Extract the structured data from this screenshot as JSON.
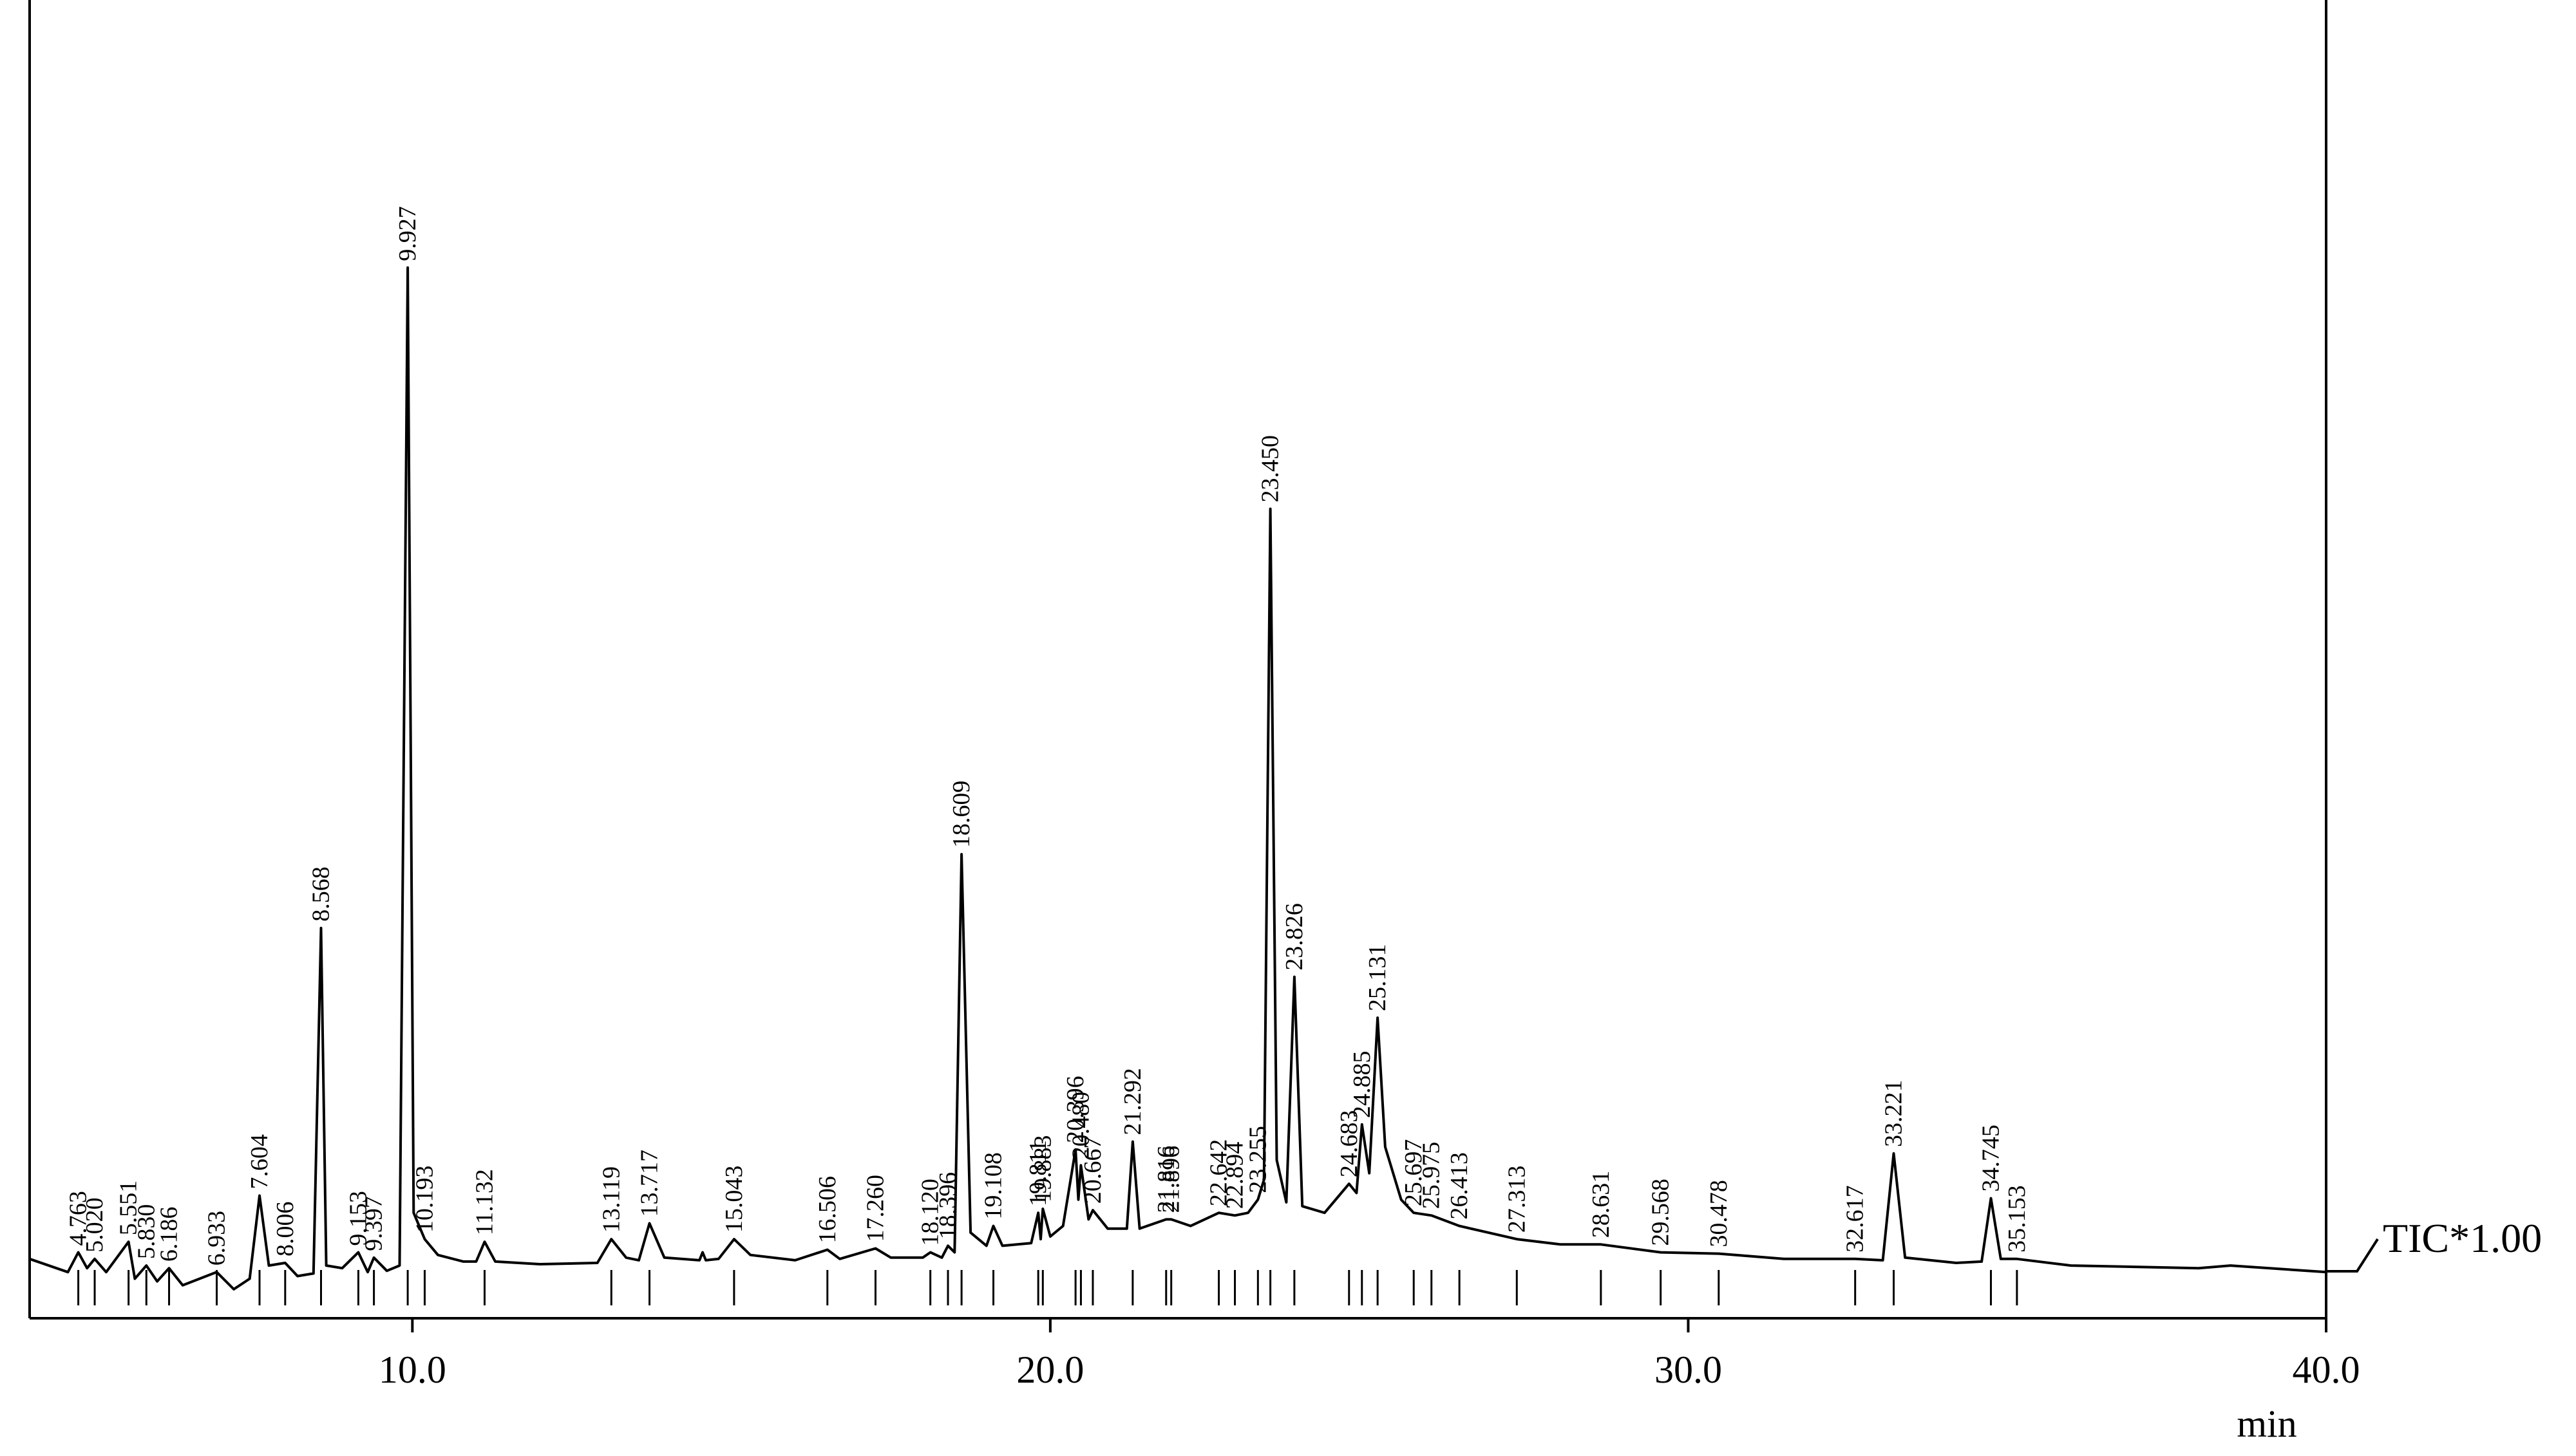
{
  "chart_data": {
    "type": "line",
    "xlabel": "min",
    "xlim": [
      4,
      40
    ],
    "xticks": [
      {
        "value": 10,
        "label": "10.0"
      },
      {
        "value": 20,
        "label": "20.0"
      },
      {
        "value": 30,
        "label": "30.0"
      },
      {
        "value": 40,
        "label": "40.0"
      }
    ],
    "ylim": [
      0,
      100
    ],
    "series": [
      {
        "name": "TIC*1.00",
        "color": "#000000",
        "x": [
          4.0,
          4.6,
          4.763,
          4.9,
          5.02,
          5.2,
          5.551,
          5.65,
          5.83,
          6.0,
          6.186,
          6.4,
          6.933,
          7.2,
          7.45,
          7.604,
          7.75,
          8.006,
          8.2,
          8.45,
          8.568,
          8.65,
          8.9,
          9.153,
          9.3,
          9.397,
          9.6,
          9.8,
          9.927,
          10.02,
          10.193,
          10.4,
          10.8,
          11.0,
          11.132,
          11.3,
          12.0,
          12.9,
          13.119,
          13.35,
          13.55,
          13.717,
          13.95,
          14.5,
          14.55,
          14.6,
          14.8,
          15.043,
          15.3,
          16.0,
          16.506,
          16.7,
          17.26,
          17.5,
          18.0,
          18.12,
          18.3,
          18.396,
          18.5,
          18.609,
          18.75,
          19.0,
          19.108,
          19.25,
          19.7,
          19.811,
          19.85,
          19.883,
          20.0,
          20.2,
          20.396,
          20.44,
          20.48,
          20.6,
          20.667,
          20.9,
          21.2,
          21.292,
          21.4,
          21.816,
          21.896,
          22.2,
          22.642,
          22.894,
          23.1,
          23.255,
          23.35,
          23.45,
          23.55,
          23.7,
          23.826,
          23.95,
          24.3,
          24.683,
          24.8,
          24.885,
          25.0,
          25.131,
          25.25,
          25.5,
          25.697,
          25.975,
          26.413,
          27.313,
          28.0,
          28.631,
          29.568,
          30.478,
          31.5,
          32.617,
          33.05,
          33.221,
          33.4,
          34.2,
          34.6,
          34.745,
          34.9,
          35.153,
          36.0,
          38.0,
          38.5,
          40.0
        ],
        "values": [
          4.5,
          3.5,
          5.0,
          3.8,
          4.5,
          3.5,
          5.8,
          3.0,
          4.0,
          2.8,
          3.8,
          2.5,
          3.5,
          2.2,
          3.0,
          9.3,
          4.0,
          4.2,
          3.2,
          3.4,
          29.6,
          4.0,
          3.8,
          5.0,
          3.5,
          4.6,
          3.6,
          4.0,
          79.7,
          8.0,
          6.0,
          4.8,
          4.3,
          4.3,
          5.8,
          4.3,
          4.1,
          4.2,
          6.0,
          4.6,
          4.4,
          7.2,
          4.6,
          4.4,
          5.0,
          4.4,
          4.5,
          6.0,
          4.8,
          4.4,
          5.2,
          4.5,
          5.3,
          4.6,
          4.6,
          5.0,
          4.6,
          5.5,
          5.0,
          35.2,
          6.5,
          5.5,
          7.0,
          5.5,
          5.7,
          8.0,
          6.0,
          8.3,
          6.2,
          7.0,
          12.8,
          9.0,
          11.6,
          7.5,
          8.2,
          6.8,
          6.8,
          13.4,
          6.8,
          7.5,
          7.5,
          7.0,
          8.0,
          7.8,
          8.0,
          9.0,
          10.5,
          61.4,
          12.0,
          8.8,
          25.9,
          8.5,
          8.0,
          10.2,
          9.5,
          14.7,
          11.0,
          22.8,
          13.0,
          9.0,
          8.0,
          7.8,
          7.0,
          6.0,
          5.6,
          5.6,
          5.0,
          4.9,
          4.5,
          4.5,
          4.4,
          12.5,
          4.6,
          4.2,
          4.3,
          9.1,
          4.5,
          4.5,
          4.0,
          3.8,
          4.0,
          3.5
        ]
      }
    ],
    "annotations": [
      {
        "x": 4.763,
        "label": "4.763"
      },
      {
        "x": 5.02,
        "label": "5.020"
      },
      {
        "x": 5.551,
        "label": "5.551"
      },
      {
        "x": 5.83,
        "label": "5.830"
      },
      {
        "x": 6.186,
        "label": "6.186"
      },
      {
        "x": 6.933,
        "label": "6.933"
      },
      {
        "x": 7.604,
        "label": "7.604"
      },
      {
        "x": 8.006,
        "label": "8.006"
      },
      {
        "x": 8.568,
        "label": "8.568"
      },
      {
        "x": 9.153,
        "label": "9.153"
      },
      {
        "x": 9.397,
        "label": "9.397"
      },
      {
        "x": 9.927,
        "label": "9.927"
      },
      {
        "x": 10.193,
        "label": "10.193"
      },
      {
        "x": 11.132,
        "label": "11.132"
      },
      {
        "x": 13.119,
        "label": "13.119"
      },
      {
        "x": 13.717,
        "label": "13.717"
      },
      {
        "x": 15.043,
        "label": "15.043"
      },
      {
        "x": 16.506,
        "label": "16.506"
      },
      {
        "x": 17.26,
        "label": "17.260"
      },
      {
        "x": 18.12,
        "label": "18.120"
      },
      {
        "x": 18.396,
        "label": "18.396"
      },
      {
        "x": 18.609,
        "label": "18.609"
      },
      {
        "x": 19.108,
        "label": "19.108"
      },
      {
        "x": 19.811,
        "label": "19.811"
      },
      {
        "x": 19.883,
        "label": "19.883"
      },
      {
        "x": 20.396,
        "label": "20.396"
      },
      {
        "x": 20.48,
        "label": "20.480"
      },
      {
        "x": 20.667,
        "label": "20.667"
      },
      {
        "x": 21.292,
        "label": "21.292"
      },
      {
        "x": 21.816,
        "label": "21.816"
      },
      {
        "x": 21.896,
        "label": "21.896"
      },
      {
        "x": 22.642,
        "label": "22.642"
      },
      {
        "x": 22.894,
        "label": "22.894"
      },
      {
        "x": 23.255,
        "label": "23.255"
      },
      {
        "x": 23.45,
        "label": "23.450"
      },
      {
        "x": 23.826,
        "label": "23.826"
      },
      {
        "x": 24.683,
        "label": "24.683"
      },
      {
        "x": 24.885,
        "label": "24.885"
      },
      {
        "x": 25.131,
        "label": "25.131"
      },
      {
        "x": 25.697,
        "label": "25.697"
      },
      {
        "x": 25.975,
        "label": "25.975"
      },
      {
        "x": 26.413,
        "label": "26.413"
      },
      {
        "x": 27.313,
        "label": "27.313"
      },
      {
        "x": 28.631,
        "label": "28.631"
      },
      {
        "x": 29.568,
        "label": "29.568"
      },
      {
        "x": 30.478,
        "label": "30.478"
      },
      {
        "x": 32.617,
        "label": "32.617"
      },
      {
        "x": 33.221,
        "label": "33.221"
      },
      {
        "x": 34.745,
        "label": "34.745"
      },
      {
        "x": 35.153,
        "label": "35.153"
      }
    ]
  }
}
